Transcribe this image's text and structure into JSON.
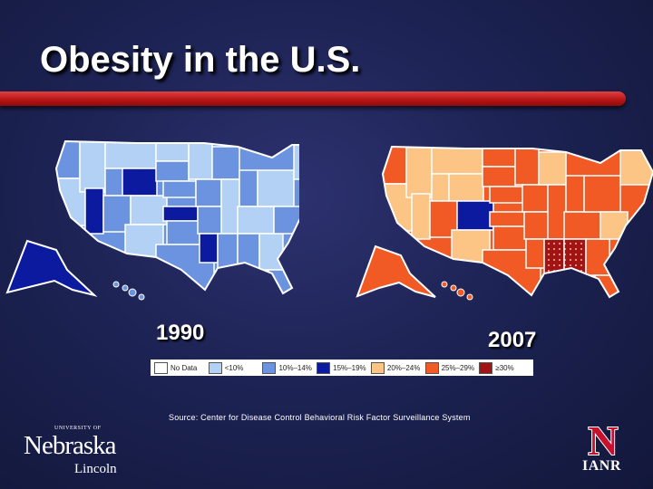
{
  "slide": {
    "title": "Obesity in the U.S.",
    "source": "Source:  Center for Disease Control Behavioral Risk Factor Surveillance System"
  },
  "maps": [
    {
      "year": "1990"
    },
    {
      "year": "2007"
    }
  ],
  "legend": [
    {
      "label": "No Data",
      "color": "#ffffff"
    },
    {
      "label": "<10%",
      "color": "#b3d1f5"
    },
    {
      "label": "10%–14%",
      "color": "#6b93e0"
    },
    {
      "label": "15%–19%",
      "color": "#0c1aa0"
    },
    {
      "label": "20%–24%",
      "color": "#fcc585"
    },
    {
      "label": "25%–29%",
      "color": "#f15a24"
    },
    {
      "label": "≥30%",
      "color": "#a01414"
    }
  ],
  "logos": {
    "unl": {
      "small": "UNIVERSITY OF",
      "name": "Nebraska",
      "place": "Lincoln"
    },
    "ianr": {
      "text": "IANR",
      "letter": "N"
    }
  }
}
